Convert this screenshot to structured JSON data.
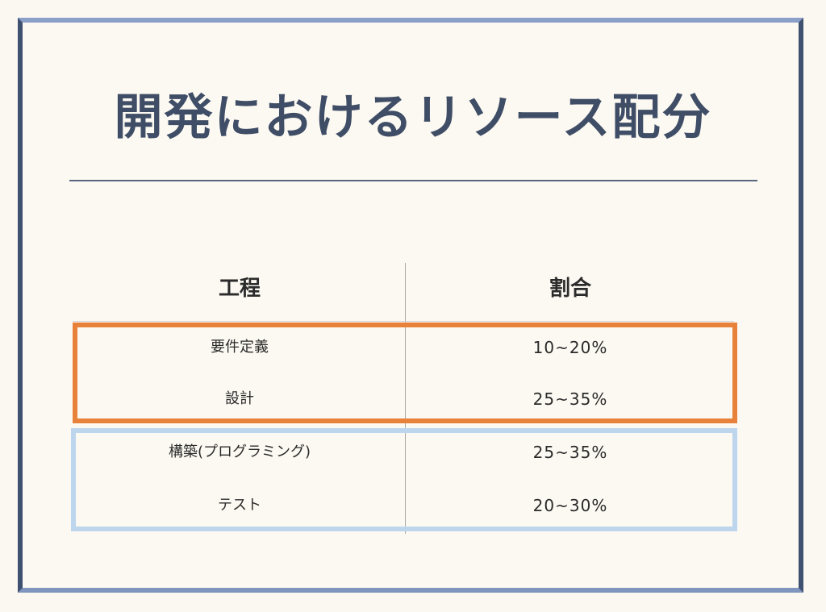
{
  "slide": {
    "title": "開発におけるリソース配分"
  },
  "table": {
    "headers": [
      "工程",
      "割合"
    ],
    "rows": [
      {
        "phase": "要件定義",
        "ratio": "10~20%"
      },
      {
        "phase": "設計",
        "ratio": "25~35%"
      },
      {
        "phase": "構築(プログラミング)",
        "ratio": "25~35%"
      },
      {
        "phase": "テスト",
        "ratio": "20~30%"
      }
    ]
  },
  "colors": {
    "frame": "#3e5170",
    "title": "#3f4e66",
    "highlight_orange": "#e8823a",
    "highlight_blue": "#bdd6ee",
    "background": "#fbf8f1"
  }
}
